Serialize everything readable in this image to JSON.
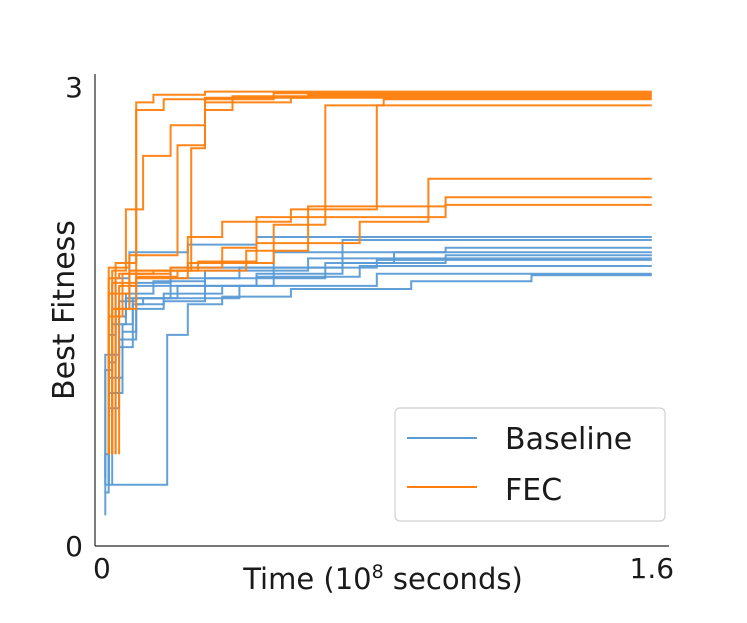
{
  "chart_data": {
    "type": "line",
    "xlabel_prefix": "Time (10",
    "xlabel_exp": "8",
    "xlabel_suffix": " seconds)",
    "ylabel": "Best Fitness",
    "xlim": [
      -0.02,
      1.65
    ],
    "ylim": [
      0,
      3.02
    ],
    "x_ticks": [
      {
        "value": 0,
        "label": "0"
      },
      {
        "value": 1.6,
        "label": "1.6"
      }
    ],
    "y_ticks": [
      {
        "value": 0,
        "label": "0"
      },
      {
        "value": 3,
        "label": "3"
      }
    ],
    "legend": {
      "position": "lower-right",
      "entries": [
        "Baseline",
        "FEC"
      ]
    },
    "colors": {
      "Baseline": "#5b9bd5",
      "FEC": "#ff7f0e"
    },
    "series": [
      {
        "name": "Baseline",
        "points": [
          [
            0.01,
            0.2
          ],
          [
            0.01,
            0.35
          ],
          [
            0.02,
            0.35
          ],
          [
            0.02,
            1.38
          ],
          [
            0.04,
            1.38
          ],
          [
            0.04,
            1.75
          ],
          [
            0.08,
            1.75
          ],
          [
            0.08,
            1.92
          ],
          [
            0.25,
            1.92
          ],
          [
            0.25,
            1.97
          ],
          [
            0.45,
            1.97
          ],
          [
            0.45,
            2.02
          ],
          [
            1.6,
            2.02
          ]
        ]
      },
      {
        "name": "Baseline",
        "points": [
          [
            0.01,
            0.35
          ],
          [
            0.01,
            0.6
          ],
          [
            0.02,
            0.6
          ],
          [
            0.02,
            1.25
          ],
          [
            0.05,
            1.25
          ],
          [
            0.05,
            1.6
          ],
          [
            0.1,
            1.6
          ],
          [
            0.1,
            1.72
          ],
          [
            0.2,
            1.72
          ],
          [
            0.2,
            1.82
          ],
          [
            0.5,
            1.82
          ],
          [
            0.5,
            1.92
          ],
          [
            1.0,
            1.92
          ],
          [
            1.0,
            1.95
          ],
          [
            1.6,
            1.95
          ]
        ]
      },
      {
        "name": "Baseline",
        "points": [
          [
            0.02,
            0.4
          ],
          [
            0.02,
            1.2
          ],
          [
            0.04,
            1.2
          ],
          [
            0.04,
            1.5
          ],
          [
            0.07,
            1.5
          ],
          [
            0.07,
            1.65
          ],
          [
            0.15,
            1.65
          ],
          [
            0.15,
            1.73
          ],
          [
            0.3,
            1.73
          ],
          [
            0.3,
            1.8
          ],
          [
            0.6,
            1.8
          ],
          [
            0.6,
            1.88
          ],
          [
            1.0,
            1.88
          ],
          [
            1.0,
            1.9
          ],
          [
            1.6,
            1.9
          ]
        ]
      },
      {
        "name": "Baseline",
        "points": [
          [
            0.01,
            0.4
          ],
          [
            0.01,
            1.15
          ],
          [
            0.03,
            1.15
          ],
          [
            0.03,
            1.45
          ],
          [
            0.07,
            1.45
          ],
          [
            0.07,
            1.62
          ],
          [
            0.22,
            1.62
          ],
          [
            0.22,
            1.7
          ],
          [
            0.45,
            1.7
          ],
          [
            0.45,
            1.76
          ],
          [
            0.75,
            1.76
          ],
          [
            0.75,
            1.83
          ],
          [
            1.6,
            1.83
          ]
        ]
      },
      {
        "name": "Baseline",
        "points": [
          [
            0.01,
            0.4
          ],
          [
            0.01,
            0.4
          ],
          [
            0.19,
            0.4
          ],
          [
            0.19,
            1.38
          ],
          [
            0.25,
            1.38
          ],
          [
            0.25,
            1.58
          ],
          [
            0.35,
            1.58
          ],
          [
            0.35,
            1.63
          ],
          [
            0.55,
            1.63
          ],
          [
            0.55,
            1.68
          ],
          [
            0.9,
            1.68
          ],
          [
            0.9,
            1.73
          ],
          [
            1.25,
            1.73
          ],
          [
            1.25,
            1.77
          ],
          [
            1.6,
            1.77
          ]
        ]
      },
      {
        "name": "Baseline",
        "points": [
          [
            0.01,
            0.45
          ],
          [
            0.01,
            1.25
          ],
          [
            0.04,
            1.25
          ],
          [
            0.04,
            1.55
          ],
          [
            0.08,
            1.55
          ],
          [
            0.08,
            1.7
          ],
          [
            0.2,
            1.7
          ],
          [
            0.2,
            1.75
          ],
          [
            0.4,
            1.75
          ],
          [
            0.4,
            1.82
          ],
          [
            0.8,
            1.82
          ],
          [
            0.8,
            1.87
          ],
          [
            1.6,
            1.87
          ]
        ]
      },
      {
        "name": "Baseline",
        "points": [
          [
            0.02,
            0.4
          ],
          [
            0.02,
            1.0
          ],
          [
            0.05,
            1.0
          ],
          [
            0.05,
            1.3
          ],
          [
            0.09,
            1.3
          ],
          [
            0.09,
            1.58
          ],
          [
            0.12,
            1.58
          ],
          [
            0.12,
            1.62
          ],
          [
            0.4,
            1.62
          ],
          [
            0.4,
            1.7
          ],
          [
            0.8,
            1.7
          ],
          [
            0.8,
            1.78
          ],
          [
            1.6,
            1.78
          ]
        ]
      },
      {
        "name": "Baseline",
        "points": [
          [
            0.02,
            0.4
          ],
          [
            0.02,
            1.1
          ],
          [
            0.06,
            1.1
          ],
          [
            0.06,
            1.4
          ],
          [
            0.1,
            1.4
          ],
          [
            0.1,
            1.58
          ],
          [
            0.18,
            1.58
          ],
          [
            0.18,
            1.6
          ],
          [
            0.3,
            1.6
          ],
          [
            0.3,
            1.75
          ],
          [
            0.65,
            1.75
          ],
          [
            0.65,
            1.85
          ],
          [
            0.85,
            1.85
          ],
          [
            0.85,
            1.92
          ],
          [
            1.6,
            1.92
          ]
        ]
      },
      {
        "name": "Baseline",
        "points": [
          [
            0.02,
            0.4
          ],
          [
            0.02,
            0.9
          ],
          [
            0.05,
            0.9
          ],
          [
            0.05,
            1.35
          ],
          [
            0.1,
            1.35
          ],
          [
            0.1,
            1.55
          ],
          [
            0.18,
            1.55
          ],
          [
            0.18,
            1.65
          ],
          [
            0.35,
            1.65
          ],
          [
            0.35,
            1.7
          ],
          [
            0.5,
            1.7
          ],
          [
            0.5,
            1.82
          ],
          [
            0.7,
            1.82
          ],
          [
            0.7,
            2.0
          ],
          [
            1.6,
            2.0
          ]
        ]
      },
      {
        "name": "Baseline",
        "points": [
          [
            0.03,
            0.4
          ],
          [
            0.03,
            1.0
          ],
          [
            0.06,
            1.0
          ],
          [
            0.06,
            1.45
          ],
          [
            0.09,
            1.45
          ],
          [
            0.09,
            1.62
          ],
          [
            0.2,
            1.62
          ],
          [
            0.2,
            1.7
          ],
          [
            0.45,
            1.7
          ],
          [
            0.45,
            1.78
          ],
          [
            0.7,
            1.78
          ],
          [
            0.7,
            1.85
          ],
          [
            1.0,
            1.85
          ],
          [
            1.0,
            1.88
          ],
          [
            1.6,
            1.88
          ]
        ]
      },
      {
        "name": "FEC",
        "points": [
          [
            0.05,
            0.6
          ],
          [
            0.05,
            1.7
          ],
          [
            0.1,
            1.7
          ],
          [
            0.1,
            2.85
          ],
          [
            0.18,
            2.85
          ],
          [
            0.18,
            2.92
          ],
          [
            0.5,
            2.92
          ],
          [
            0.5,
            2.96
          ],
          [
            1.6,
            2.96
          ]
        ]
      },
      {
        "name": "FEC",
        "points": [
          [
            0.04,
            0.6
          ],
          [
            0.04,
            1.85
          ],
          [
            0.1,
            1.85
          ],
          [
            0.1,
            2.9
          ],
          [
            0.15,
            2.9
          ],
          [
            0.15,
            2.95
          ],
          [
            0.3,
            2.95
          ],
          [
            0.3,
            2.97
          ],
          [
            1.6,
            2.97
          ]
        ]
      },
      {
        "name": "FEC",
        "points": [
          [
            0.03,
            0.6
          ],
          [
            0.03,
            1.8
          ],
          [
            0.07,
            1.8
          ],
          [
            0.07,
            2.2
          ],
          [
            0.12,
            2.2
          ],
          [
            0.12,
            2.55
          ],
          [
            0.2,
            2.55
          ],
          [
            0.2,
            2.75
          ],
          [
            0.3,
            2.75
          ],
          [
            0.3,
            2.93
          ],
          [
            0.6,
            2.93
          ],
          [
            0.6,
            2.95
          ],
          [
            1.6,
            2.95
          ]
        ]
      },
      {
        "name": "FEC",
        "points": [
          [
            0.02,
            0.6
          ],
          [
            0.02,
            1.82
          ],
          [
            0.08,
            1.82
          ],
          [
            0.08,
            1.9
          ],
          [
            0.22,
            1.9
          ],
          [
            0.22,
            2.62
          ],
          [
            0.3,
            2.62
          ],
          [
            0.3,
            2.85
          ],
          [
            0.38,
            2.85
          ],
          [
            0.38,
            2.94
          ],
          [
            1.6,
            2.94
          ]
        ]
      },
      {
        "name": "FEC",
        "points": [
          [
            0.02,
            0.6
          ],
          [
            0.02,
            1.5
          ],
          [
            0.06,
            1.5
          ],
          [
            0.06,
            1.78
          ],
          [
            0.2,
            1.78
          ],
          [
            0.2,
            1.82
          ],
          [
            0.35,
            1.82
          ],
          [
            0.35,
            1.95
          ],
          [
            0.45,
            1.95
          ],
          [
            0.45,
            2.15
          ],
          [
            1.0,
            2.15
          ],
          [
            1.0,
            2.23
          ],
          [
            1.6,
            2.23
          ]
        ]
      },
      {
        "name": "FEC",
        "points": [
          [
            0.02,
            0.6
          ],
          [
            0.02,
            1.75
          ],
          [
            0.05,
            1.75
          ],
          [
            0.05,
            1.78
          ],
          [
            0.15,
            1.78
          ],
          [
            0.15,
            1.8
          ],
          [
            0.26,
            1.8
          ],
          [
            0.26,
            2.6
          ],
          [
            0.3,
            2.6
          ],
          [
            0.3,
            2.9
          ],
          [
            0.55,
            2.9
          ],
          [
            0.55,
            2.93
          ],
          [
            1.6,
            2.93
          ]
        ]
      },
      {
        "name": "FEC",
        "points": [
          [
            0.03,
            0.6
          ],
          [
            0.03,
            1.55
          ],
          [
            0.08,
            1.55
          ],
          [
            0.08,
            1.8
          ],
          [
            0.25,
            1.8
          ],
          [
            0.25,
            2.02
          ],
          [
            0.35,
            2.02
          ],
          [
            0.35,
            2.12
          ],
          [
            0.55,
            2.12
          ],
          [
            0.55,
            2.2
          ],
          [
            0.8,
            2.2
          ],
          [
            0.8,
            2.88
          ],
          [
            1.6,
            2.88
          ]
        ]
      },
      {
        "name": "FEC",
        "points": [
          [
            0.04,
            0.6
          ],
          [
            0.04,
            1.55
          ],
          [
            0.1,
            1.55
          ],
          [
            0.1,
            1.75
          ],
          [
            0.25,
            1.75
          ],
          [
            0.25,
            1.85
          ],
          [
            0.5,
            1.85
          ],
          [
            0.5,
            2.1
          ],
          [
            0.65,
            2.1
          ],
          [
            0.65,
            2.88
          ],
          [
            0.82,
            2.88
          ],
          [
            0.82,
            2.92
          ],
          [
            1.6,
            2.92
          ]
        ]
      },
      {
        "name": "FEC",
        "points": [
          [
            0.02,
            0.6
          ],
          [
            0.02,
            1.65
          ],
          [
            0.08,
            1.65
          ],
          [
            0.08,
            1.8
          ],
          [
            0.28,
            1.8
          ],
          [
            0.28,
            1.86
          ],
          [
            0.45,
            1.86
          ],
          [
            0.45,
            1.98
          ],
          [
            0.75,
            1.98
          ],
          [
            0.75,
            2.12
          ],
          [
            0.95,
            2.12
          ],
          [
            0.95,
            2.4
          ],
          [
            1.6,
            2.4
          ]
        ]
      },
      {
        "name": "FEC",
        "points": [
          [
            0.03,
            0.6
          ],
          [
            0.03,
            1.72
          ],
          [
            0.1,
            1.72
          ],
          [
            0.1,
            1.76
          ],
          [
            0.22,
            1.76
          ],
          [
            0.22,
            1.8
          ],
          [
            0.42,
            1.8
          ],
          [
            0.42,
            1.93
          ],
          [
            0.6,
            1.93
          ],
          [
            0.6,
            2.22
          ],
          [
            1.0,
            2.22
          ],
          [
            1.0,
            2.28
          ],
          [
            1.6,
            2.28
          ]
        ]
      }
    ]
  }
}
